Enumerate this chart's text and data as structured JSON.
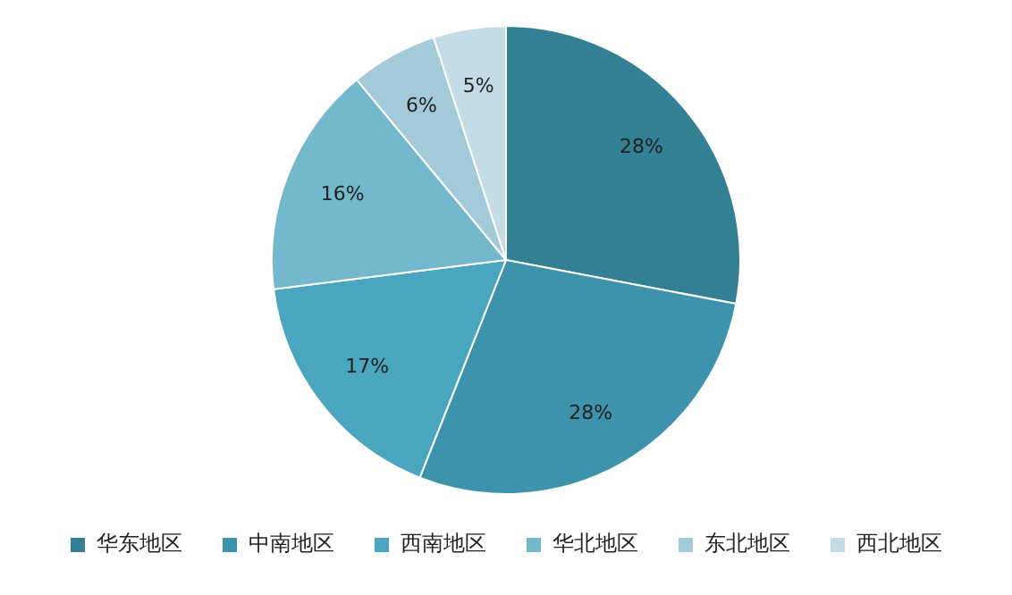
{
  "chart_data": {
    "type": "pie",
    "categories": [
      "华东地区",
      "中南地区",
      "西南地区",
      "华北地区",
      "东北地区",
      "西北地区"
    ],
    "values": [
      28,
      28,
      17,
      16,
      6,
      5
    ],
    "value_labels": [
      "28%",
      "28%",
      "17%",
      "16%",
      "6%",
      "5%"
    ],
    "colors": [
      "#337f93",
      "#3d93ab",
      "#4aa6bf",
      "#74b8cd",
      "#a3cad8",
      "#c3dce5"
    ],
    "legend": "bottom"
  }
}
